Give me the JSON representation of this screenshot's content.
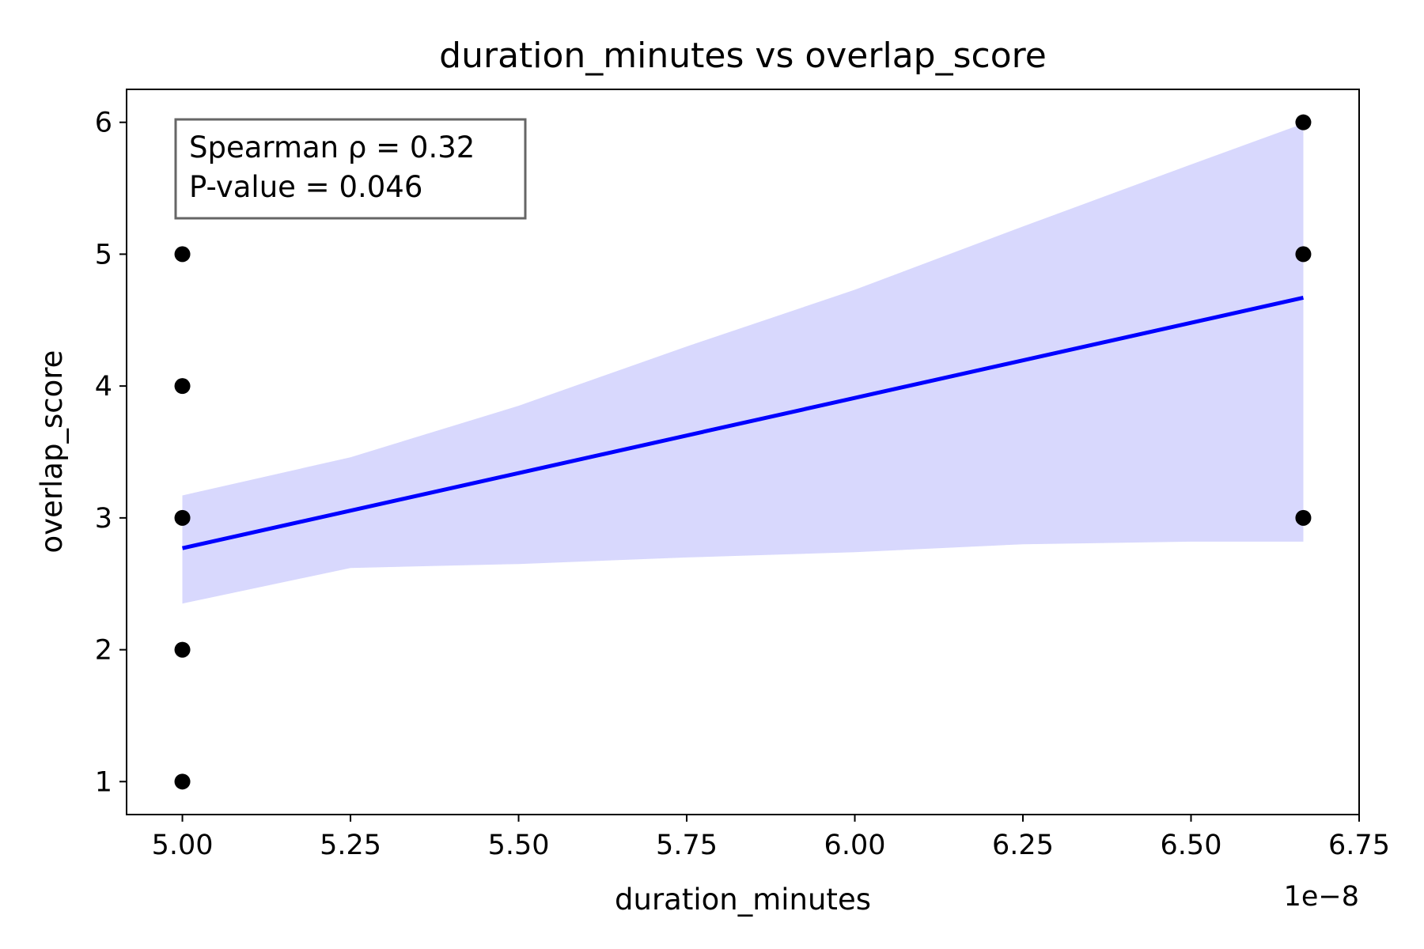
{
  "chart_data": {
    "type": "scatter",
    "title": "duration_minutes vs overlap_score",
    "xlabel": "duration_minutes",
    "ylabel": "overlap_score",
    "x_offset_label": "1e−8",
    "xlim": [
      4.917,
      6.75
    ],
    "ylim": [
      0.75,
      6.25
    ],
    "x_ticks": [
      "5.00",
      "5.25",
      "5.50",
      "5.75",
      "6.00",
      "6.25",
      "6.50",
      "6.75"
    ],
    "y_ticks": [
      "1",
      "2",
      "3",
      "4",
      "5",
      "6"
    ],
    "grid": false,
    "points": {
      "color": "#000000",
      "x": [
        5.0,
        5.0,
        5.0,
        5.0,
        5.0,
        6.667,
        6.667,
        6.667
      ],
      "y": [
        1,
        2,
        3,
        4,
        5,
        3,
        5,
        6
      ]
    },
    "regression": {
      "color": "#0000ff",
      "x": [
        5.0,
        6.667
      ],
      "y": [
        2.77,
        4.67
      ]
    },
    "confidence_band": {
      "color": "#d8d8fd",
      "x": [
        5.0,
        5.25,
        5.5,
        5.75,
        6.0,
        6.25,
        6.5,
        6.667
      ],
      "lower": [
        2.35,
        2.62,
        2.65,
        2.7,
        2.74,
        2.8,
        2.82,
        2.82
      ],
      "upper": [
        3.17,
        3.46,
        3.85,
        4.3,
        4.73,
        5.21,
        5.68,
        5.99
      ]
    },
    "annotation": {
      "lines": [
        "Spearman ρ = 0.32",
        "P-value = 0.046"
      ],
      "placement": "top-left"
    }
  }
}
